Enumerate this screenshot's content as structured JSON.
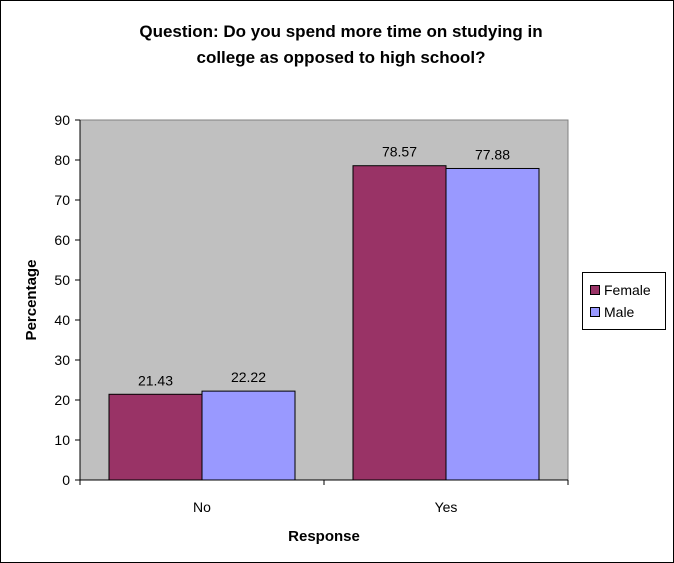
{
  "chart_data": {
    "type": "bar",
    "title_lines": [
      "Question: Do you spend more time on studying in",
      "college as opposed to high school?"
    ],
    "xlabel": "Response",
    "ylabel": "Percentage",
    "categories": [
      "No",
      "Yes"
    ],
    "series": [
      {
        "name": "Female",
        "values": [
          21.43,
          78.57
        ],
        "labels": [
          "21.43",
          "78.57"
        ]
      },
      {
        "name": "Male",
        "values": [
          22.22,
          77.88
        ],
        "labels": [
          "22.22",
          "77.88"
        ]
      }
    ],
    "ylim": [
      0,
      90
    ],
    "yticks": [
      0,
      10,
      20,
      30,
      40,
      50,
      60,
      70,
      80,
      90
    ],
    "grid": false,
    "legend_position": "right",
    "plot_background": "#c0c0c0",
    "colors": {
      "Female": "#993366",
      "Male": "#9999ff"
    }
  }
}
